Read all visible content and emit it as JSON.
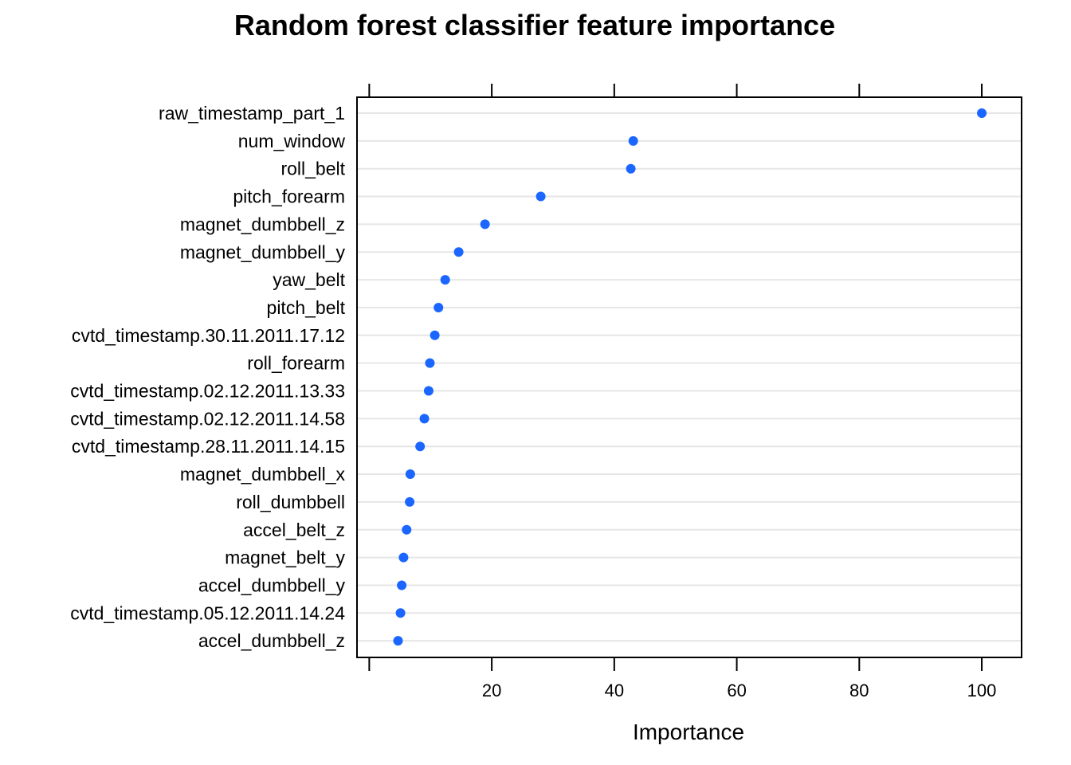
{
  "chart_data": {
    "type": "scatter",
    "title": "Random forest classifier feature importance",
    "xlabel": "Importance",
    "ylabel": "",
    "xlim": [
      -2,
      106.5
    ],
    "x_ticks": [
      20,
      40,
      60,
      80,
      100
    ],
    "x_tick_labels": [
      "20",
      "40",
      "60",
      "80",
      "100"
    ],
    "grid": true,
    "legend": "none",
    "point_color": "#1a66ff",
    "categories": [
      "raw_timestamp_part_1",
      "num_window",
      "roll_belt",
      "pitch_forearm",
      "magnet_dumbbell_z",
      "magnet_dumbbell_y",
      "yaw_belt",
      "pitch_belt",
      "cvtd_timestamp.30.11.2011.17.12",
      "roll_forearm",
      "cvtd_timestamp.02.12.2011.13.33",
      "cvtd_timestamp.02.12.2011.14.58",
      "cvtd_timestamp.28.11.2011.14.15",
      "magnet_dumbbell_x",
      "roll_dumbbell",
      "accel_belt_z",
      "magnet_belt_y",
      "accel_dumbbell_y",
      "cvtd_timestamp.05.12.2011.14.24",
      "accel_dumbbell_z"
    ],
    "values": [
      100,
      43.1,
      42.7,
      28.0,
      18.9,
      14.6,
      12.4,
      11.3,
      10.7,
      9.9,
      9.7,
      9.0,
      8.3,
      6.7,
      6.6,
      6.1,
      5.6,
      5.3,
      5.1,
      4.7
    ]
  }
}
